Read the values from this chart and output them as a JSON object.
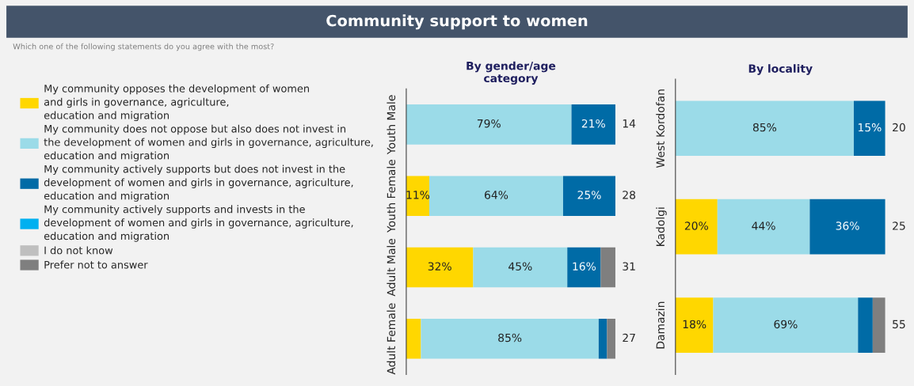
{
  "chart_data": [
    {
      "type": "other",
      "title": "Community support to women",
      "subtitle": "Which one of the following statements do you agree with the most?"
    },
    {
      "type": "bar",
      "orientation": "horizontal",
      "stacked": true,
      "title": "By gender/age\ncategory",
      "categories": [
        "Youth Male",
        "Youth Female",
        "Adult Male",
        "Adult Female"
      ],
      "legend": "left",
      "series": [
        {
          "name": "My community opposes the development of women\nand girls in governance, agriculture,\neducation and migration",
          "color": "#ffd700",
          "values": [
            0,
            11,
            32,
            7
          ],
          "value_labels": [
            null,
            "11%",
            "32%",
            null
          ]
        },
        {
          "name": "My community does not oppose but also does not invest in\nthe development of women and girls in governance, agriculture,\neducation and migration",
          "color": "#9bdbe8",
          "values": [
            79,
            64,
            45,
            85
          ],
          "value_labels": [
            "79%",
            "64%",
            "45%",
            "85%"
          ]
        },
        {
          "name": "My community actively supports but does not invest in the\ndevelopment of women and girls in governance, agriculture,\neducation and migration",
          "color": "#006ba6",
          "values": [
            21,
            25,
            16,
            4
          ],
          "value_labels": [
            "21%",
            "25%",
            "16%",
            null
          ]
        },
        {
          "name": "My community actively supports and invests in the\ndevelopment of women and girls in governance, agriculture,\neducation and migration",
          "color": "#00b0f0",
          "values": [
            0,
            0,
            0,
            0
          ]
        },
        {
          "name": "I do not know",
          "color": "#bfbfbf",
          "values": [
            0,
            0,
            0,
            0
          ]
        },
        {
          "name": "Prefer not to answer",
          "color": "#7f7f7f",
          "values": [
            0,
            0,
            7,
            4
          ]
        }
      ],
      "annotations": [
        "14",
        "28",
        "31",
        "27"
      ]
    },
    {
      "type": "bar",
      "orientation": "horizontal",
      "stacked": true,
      "title": "By locality",
      "categories": [
        "West Kordofan",
        "Kadolgi",
        "Damazin"
      ],
      "series": [
        {
          "color": "#ffd700",
          "values": [
            0,
            20,
            18
          ],
          "value_labels": [
            null,
            "20%",
            "18%"
          ]
        },
        {
          "color": "#9bdbe8",
          "values": [
            85,
            44,
            69
          ],
          "value_labels": [
            "85%",
            "44%",
            "69%"
          ]
        },
        {
          "color": "#006ba6",
          "values": [
            15,
            36,
            7
          ],
          "value_labels": [
            "15%",
            "36%",
            null
          ]
        },
        {
          "color": "#00b0f0",
          "values": [
            0,
            0,
            0
          ]
        },
        {
          "color": "#bfbfbf",
          "values": [
            0,
            0,
            0
          ]
        },
        {
          "color": "#7f7f7f",
          "values": [
            0,
            0,
            6
          ]
        }
      ],
      "annotations": [
        "20",
        "25",
        "55"
      ]
    }
  ]
}
